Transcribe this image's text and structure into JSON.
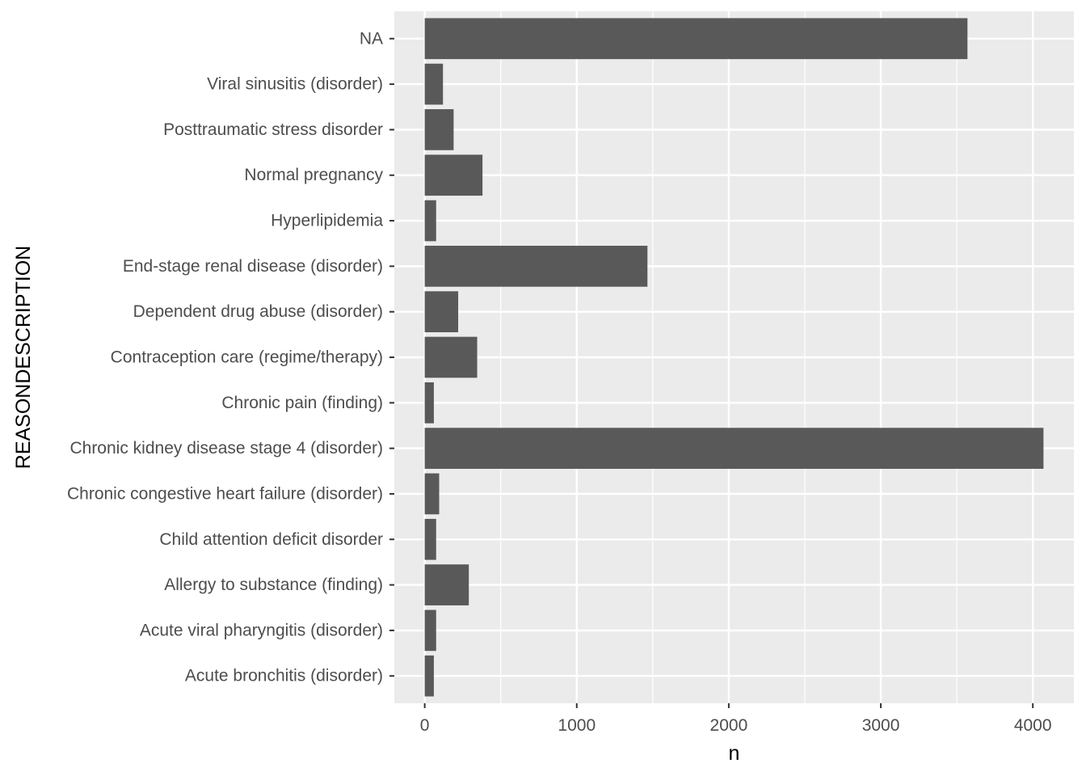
{
  "chart_data": {
    "type": "bar",
    "orientation": "horizontal",
    "title": "",
    "xlabel": "n",
    "ylabel": "REASONDESCRIPTION",
    "categories": [
      "Acute bronchitis (disorder)",
      "Acute viral pharyngitis (disorder)",
      "Allergy to substance (finding)",
      "Child attention deficit disorder",
      "Chronic congestive heart failure (disorder)",
      "Chronic kidney disease stage 4 (disorder)",
      "Chronic pain (finding)",
      "Contraception care (regime/therapy)",
      "Dependent drug abuse (disorder)",
      "End-stage renal disease (disorder)",
      "Hyperlipidemia",
      "Normal pregnancy",
      "Posttraumatic stress disorder",
      "Viral sinusitis (disorder)",
      "NA"
    ],
    "values": [
      60,
      75,
      290,
      75,
      95,
      4070,
      60,
      345,
      220,
      1465,
      75,
      380,
      190,
      120,
      3570
    ],
    "xlim": [
      -200,
      4270
    ],
    "xticks": [
      0,
      1000,
      2000,
      3000,
      4000
    ],
    "xtick_labels": [
      "0",
      "1000",
      "2000",
      "3000",
      "4000"
    ],
    "grid": true,
    "panel_color": "#ebebeb",
    "bar_color": "#595959",
    "grid_color": "#ffffff"
  }
}
